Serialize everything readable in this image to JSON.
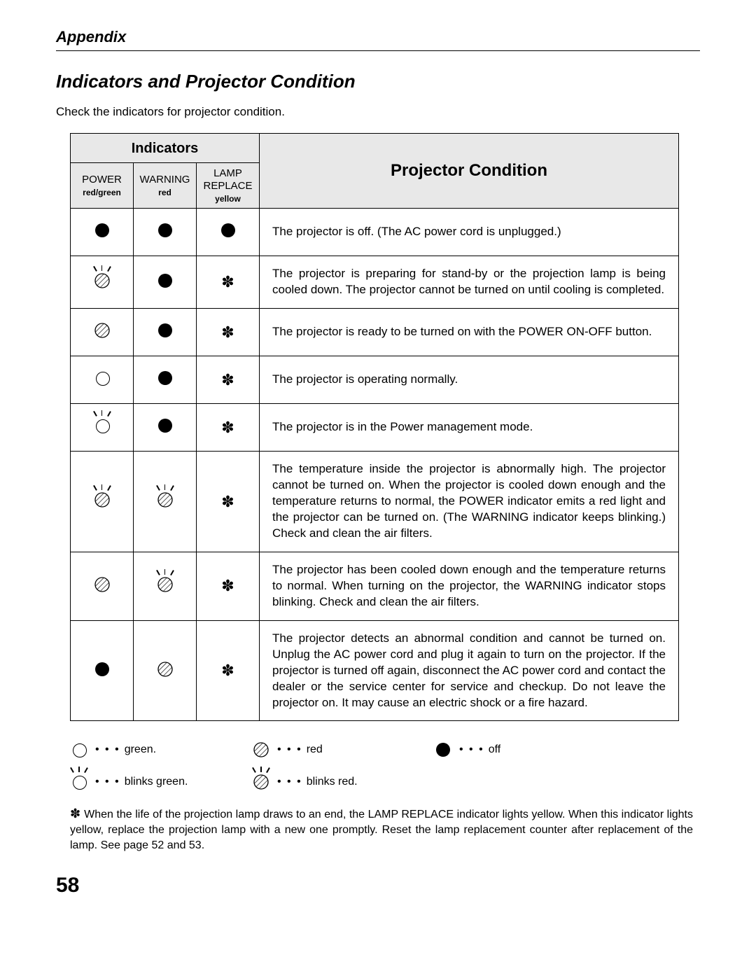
{
  "header": {
    "appendix": "Appendix"
  },
  "title": "Indicators and Projector Condition",
  "intro": "Check the indicators for projector condition.",
  "table": {
    "indicators_header": "Indicators",
    "condition_header": "Projector Condition",
    "cols": [
      {
        "name": "POWER",
        "color": "red/green"
      },
      {
        "name": "WARNING",
        "color": "red"
      },
      {
        "name": "LAMP REPLACE",
        "color": "yellow"
      }
    ],
    "rows": [
      {
        "power": "solid",
        "warning": "solid",
        "lamp": "solid",
        "desc": "The projector is off.  (The AC power cord is unplugged.)"
      },
      {
        "power": "hatched-blink",
        "warning": "solid",
        "lamp": "star",
        "desc": "The projector is preparing for stand-by or the projection lamp is being cooled down.  The projector cannot be turned on until cooling is completed."
      },
      {
        "power": "hatched",
        "warning": "solid",
        "lamp": "star",
        "desc": "The projector is ready to be turned on with the POWER ON-OFF button."
      },
      {
        "power": "open",
        "warning": "solid",
        "lamp": "star",
        "desc": "The projector is operating normally."
      },
      {
        "power": "open-blink",
        "warning": "solid",
        "lamp": "star",
        "desc": "The projector is in the Power management mode."
      },
      {
        "power": "hatched-blink",
        "warning": "hatched-blink",
        "lamp": "star",
        "desc": "The temperature inside the projector is abnormally high.  The projector cannot be turned on.  When  the projector is cooled down enough and the temperature returns to normal, the POWER indicator emits a red light and the projector can be turned on.  (The WARNING indicator keeps blinking.)  Check and clean the air filters."
      },
      {
        "power": "hatched",
        "warning": "hatched-blink",
        "lamp": "star",
        "desc": "The projector has been cooled down enough and the temperature returns to normal.  When turning on the projector, the WARNING indicator stops blinking.  Check and clean the air filters."
      },
      {
        "power": "solid",
        "warning": "hatched",
        "lamp": "star",
        "desc": "The projector detects an abnormal condition and cannot be turned on.  Unplug the AC power cord and plug it again to turn on the projector.  If the projector is turned off again, disconnect the AC power cord and contact the dealer or the service center for service and checkup.  Do not leave the projector on.  It may cause an electric shock or a fire hazard."
      }
    ]
  },
  "legend": {
    "green": "green.",
    "red": "red",
    "off": "off",
    "blinks_green": "blinks green.",
    "blinks_red": "blinks red."
  },
  "footnote": "When the life of the projection lamp draws to an end, the LAMP REPLACE indicator lights yellow.  When this indicator lights yellow, replace the projection lamp with a new one promptly.  Reset the lamp replacement counter after replacement of the lamp.  See page 52 and 53.",
  "page_number": "58"
}
